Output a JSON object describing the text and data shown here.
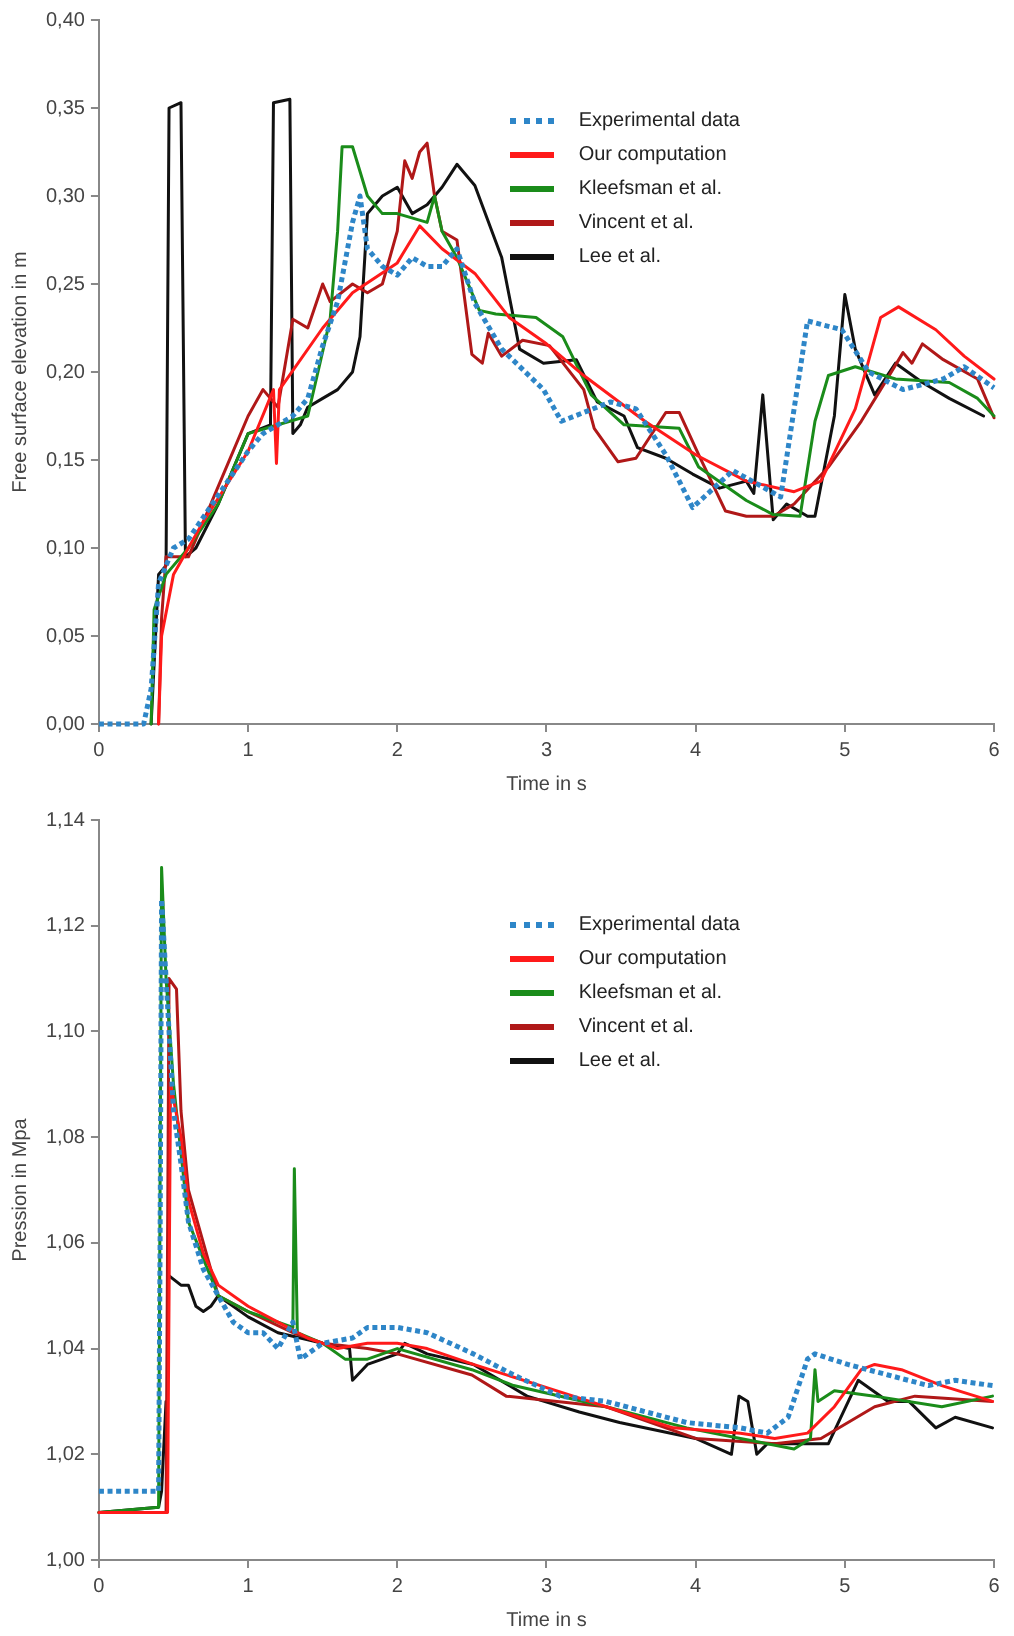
{
  "chart_data": [
    {
      "type": "line",
      "xlabel": "Time in s",
      "ylabel": "Free surface elevation in m",
      "legend": "top right",
      "marker": "none",
      "xlim": [
        0,
        6
      ],
      "xticks": [
        0,
        1,
        2,
        3,
        4,
        5,
        6
      ],
      "ylim": [
        0,
        0.4
      ],
      "yticks": [
        {
          "value": 0,
          "label": "0,00"
        },
        {
          "value": 0.05,
          "label": "0,05"
        },
        {
          "value": 0.1,
          "label": "0,10"
        },
        {
          "value": 0.15,
          "label": "0,15"
        },
        {
          "value": 0.2,
          "label": "0,20"
        },
        {
          "value": 0.25,
          "label": "0,25"
        },
        {
          "value": 0.3,
          "label": "0,30"
        },
        {
          "value": 0.35,
          "label": "0,35"
        },
        {
          "value": 0.4,
          "label": "0,40"
        }
      ],
      "series": [
        {
          "name": "Experimental data",
          "color": "#2e86c8",
          "line_style": "dotted",
          "x": [
            0,
            0.3,
            0.35,
            0.4,
            0.5,
            0.6,
            0.8,
            1.0,
            1.1,
            1.3,
            1.4,
            1.5,
            1.6,
            1.7,
            1.75,
            1.8,
            1.9,
            2.0,
            2.1,
            2.2,
            2.3,
            2.4,
            2.52,
            2.7,
            2.98,
            3.1,
            3.43,
            3.6,
            3.8,
            3.98,
            4.25,
            4.57,
            4.75,
            4.98,
            5.16,
            5.39,
            5.66,
            5.8,
            6.0
          ],
          "values": [
            0,
            0,
            0.02,
            0.08,
            0.1,
            0.105,
            0.13,
            0.155,
            0.165,
            0.175,
            0.185,
            0.215,
            0.24,
            0.285,
            0.3,
            0.27,
            0.26,
            0.255,
            0.265,
            0.26,
            0.26,
            0.27,
            0.239,
            0.213,
            0.19,
            0.172,
            0.183,
            0.179,
            0.153,
            0.123,
            0.144,
            0.129,
            0.229,
            0.224,
            0.2,
            0.19,
            0.196,
            0.203,
            0.191
          ]
        },
        {
          "name": "Our computation",
          "color": "#ff1a1a",
          "line_style": "solid",
          "x": [
            0.4,
            0.42,
            0.5,
            0.7,
            1.0,
            1.17,
            1.19,
            1.21,
            1.5,
            1.7,
            2.0,
            2.15,
            2.3,
            2.52,
            2.75,
            3.0,
            3.25,
            3.66,
            4.0,
            4.34,
            4.66,
            4.84,
            5.07,
            5.24,
            5.36,
            5.61,
            5.8,
            6.0
          ],
          "values": [
            0,
            0.05,
            0.085,
            0.115,
            0.155,
            0.19,
            0.148,
            0.19,
            0.225,
            0.245,
            0.262,
            0.283,
            0.27,
            0.256,
            0.231,
            0.216,
            0.198,
            0.172,
            0.153,
            0.138,
            0.132,
            0.138,
            0.179,
            0.231,
            0.237,
            0.224,
            0.209,
            0.196
          ]
        },
        {
          "name": "Kleefsman et al.",
          "color": "#1a8c1a",
          "line_style": "solid",
          "x": [
            0.35,
            0.37,
            0.45,
            0.6,
            0.8,
            1.0,
            1.2,
            1.4,
            1.55,
            1.6,
            1.63,
            1.7,
            1.8,
            1.9,
            2.0,
            2.2,
            2.25,
            2.3,
            2.4,
            2.55,
            2.66,
            2.93,
            3.11,
            3.3,
            3.52,
            3.89,
            4.02,
            4.34,
            4.52,
            4.7,
            4.8,
            4.89,
            5.07,
            5.34,
            5.7,
            5.89,
            6.0
          ],
          "values": [
            0,
            0.065,
            0.085,
            0.1,
            0.125,
            0.165,
            0.17,
            0.175,
            0.23,
            0.28,
            0.328,
            0.328,
            0.3,
            0.29,
            0.29,
            0.285,
            0.3,
            0.28,
            0.265,
            0.235,
            0.233,
            0.231,
            0.22,
            0.187,
            0.17,
            0.168,
            0.146,
            0.127,
            0.119,
            0.118,
            0.172,
            0.198,
            0.203,
            0.196,
            0.194,
            0.185,
            0.175
          ]
        },
        {
          "name": "Vincent et al.",
          "color": "#b01818",
          "line_style": "solid",
          "x": [
            0.4,
            0.42,
            0.45,
            0.6,
            0.8,
            1.0,
            1.1,
            1.2,
            1.3,
            1.4,
            1.5,
            1.55,
            1.7,
            1.8,
            1.9,
            2.0,
            2.05,
            2.1,
            2.15,
            2.2,
            2.25,
            2.3,
            2.4,
            2.5,
            2.57,
            2.61,
            2.7,
            2.84,
            3.02,
            3.25,
            3.32,
            3.48,
            3.6,
            3.8,
            3.89,
            4.02,
            4.2,
            4.34,
            4.52,
            4.66,
            4.89,
            5.11,
            5.24,
            5.39,
            5.45,
            5.52,
            5.66,
            5.89,
            6.0
          ],
          "values": [
            0,
            0.06,
            0.095,
            0.095,
            0.135,
            0.175,
            0.19,
            0.18,
            0.23,
            0.225,
            0.25,
            0.24,
            0.25,
            0.245,
            0.25,
            0.28,
            0.32,
            0.31,
            0.325,
            0.33,
            0.3,
            0.28,
            0.275,
            0.21,
            0.205,
            0.222,
            0.209,
            0.218,
            0.215,
            0.19,
            0.168,
            0.149,
            0.151,
            0.177,
            0.177,
            0.153,
            0.121,
            0.118,
            0.118,
            0.125,
            0.146,
            0.172,
            0.19,
            0.211,
            0.205,
            0.216,
            0.207,
            0.196,
            0.174
          ]
        },
        {
          "name": "Lee et al.",
          "color": "#111111",
          "line_style": "solid",
          "x": [
            0.35,
            0.4,
            0.45,
            0.47,
            0.55,
            0.58,
            0.65,
            0.8,
            1.0,
            1.15,
            1.17,
            1.28,
            1.3,
            1.35,
            1.4,
            1.5,
            1.6,
            1.7,
            1.75,
            1.8,
            1.9,
            2.0,
            2.1,
            2.2,
            2.3,
            2.4,
            2.52,
            2.7,
            2.82,
            2.98,
            3.2,
            3.34,
            3.52,
            3.61,
            3.8,
            3.98,
            4.16,
            4.34,
            4.39,
            4.45,
            4.52,
            4.61,
            4.75,
            4.8,
            4.93,
            5.0,
            5.07,
            5.2,
            5.34,
            5.52,
            5.7,
            5.93
          ],
          "values": [
            0,
            0.085,
            0.09,
            0.35,
            0.353,
            0.095,
            0.1,
            0.125,
            0.165,
            0.17,
            0.353,
            0.355,
            0.165,
            0.17,
            0.18,
            0.185,
            0.19,
            0.2,
            0.22,
            0.29,
            0.3,
            0.305,
            0.29,
            0.295,
            0.305,
            0.318,
            0.306,
            0.265,
            0.213,
            0.205,
            0.207,
            0.183,
            0.175,
            0.157,
            0.151,
            0.142,
            0.134,
            0.138,
            0.131,
            0.187,
            0.116,
            0.125,
            0.118,
            0.118,
            0.175,
            0.244,
            0.213,
            0.187,
            0.205,
            0.194,
            0.185,
            0.175
          ]
        }
      ]
    },
    {
      "type": "line",
      "xlabel": "Time in s",
      "ylabel": "Pression in Mpa",
      "legend": "top right",
      "marker": "none",
      "xlim": [
        0,
        6
      ],
      "xticks": [
        0,
        1,
        2,
        3,
        4,
        5,
        6
      ],
      "ylim": [
        1,
        1.14
      ],
      "yticks": [
        {
          "value": 1,
          "label": "1,00"
        },
        {
          "value": 1.02,
          "label": "1,02"
        },
        {
          "value": 1.04,
          "label": "1,04"
        },
        {
          "value": 1.06,
          "label": "1,06"
        },
        {
          "value": 1.08,
          "label": "1,08"
        },
        {
          "value": 1.1,
          "label": "1,10"
        },
        {
          "value": 1.12,
          "label": "1,12"
        },
        {
          "value": 1.14,
          "label": "1,14"
        }
      ],
      "series": [
        {
          "name": "Experimental data",
          "color": "#2e86c8",
          "line_style": "dotted",
          "x": [
            0,
            0.4,
            0.41,
            0.42,
            0.45,
            0.5,
            0.55,
            0.6,
            0.7,
            0.8,
            0.9,
            1.0,
            1.1,
            1.2,
            1.3,
            1.35,
            1.5,
            1.7,
            1.8,
            2.0,
            2.2,
            2.51,
            2.78,
            3.09,
            3.4,
            3.67,
            3.94,
            4.3,
            4.48,
            4.62,
            4.75,
            4.8,
            5.02,
            5.29,
            5.56,
            5.74,
            5.99
          ],
          "values": [
            1.013,
            1.013,
            1.06,
            1.125,
            1.11,
            1.085,
            1.075,
            1.064,
            1.055,
            1.05,
            1.045,
            1.043,
            1.043,
            1.04,
            1.045,
            1.038,
            1.041,
            1.042,
            1.044,
            1.044,
            1.043,
            1.039,
            1.035,
            1.031,
            1.03,
            1.028,
            1.026,
            1.025,
            1.024,
            1.027,
            1.038,
            1.039,
            1.037,
            1.035,
            1.033,
            1.034,
            1.033
          ]
        },
        {
          "name": "Our computation",
          "color": "#ff1a1a",
          "line_style": "solid",
          "x": [
            0,
            0.46,
            0.48,
            0.55,
            0.6,
            0.7,
            0.8,
            1.0,
            1.2,
            1.4,
            1.6,
            1.8,
            2.0,
            2.2,
            2.51,
            2.96,
            3.4,
            3.85,
            4.3,
            4.53,
            4.75,
            4.93,
            5.11,
            5.2,
            5.38,
            5.65,
            5.99
          ],
          "values": [
            1.009,
            1.009,
            1.09,
            1.08,
            1.068,
            1.058,
            1.052,
            1.048,
            1.045,
            1.042,
            1.04,
            1.041,
            1.041,
            1.04,
            1.037,
            1.033,
            1.029,
            1.025,
            1.024,
            1.023,
            1.024,
            1.029,
            1.036,
            1.037,
            1.036,
            1.033,
            1.03
          ]
        },
        {
          "name": "Kleefsman et al.",
          "color": "#1a8c1a",
          "line_style": "solid",
          "x": [
            0,
            0.4,
            0.42,
            0.45,
            0.5,
            0.6,
            0.8,
            1.0,
            1.3,
            1.31,
            1.33,
            1.5,
            1.65,
            1.8,
            2.0,
            2.5,
            2.78,
            3.4,
            3.94,
            4.3,
            4.66,
            4.77,
            4.8,
            4.82,
            4.93,
            5.2,
            5.65,
            5.99
          ],
          "values": [
            1.009,
            1.01,
            1.131,
            1.11,
            1.09,
            1.064,
            1.05,
            1.047,
            1.044,
            1.074,
            1.043,
            1.041,
            1.038,
            1.038,
            1.04,
            1.036,
            1.033,
            1.029,
            1.025,
            1.023,
            1.021,
            1.023,
            1.036,
            1.03,
            1.032,
            1.031,
            1.029,
            1.031
          ]
        },
        {
          "name": "Vincent et al.",
          "color": "#b01818",
          "line_style": "solid",
          "x": [
            0,
            0.45,
            0.47,
            0.52,
            0.55,
            0.6,
            0.8,
            1.0,
            1.3,
            1.5,
            1.8,
            2.0,
            2.5,
            2.73,
            3.4,
            4.0,
            4.53,
            4.84,
            5.2,
            5.47,
            5.99
          ],
          "values": [
            1.009,
            1.009,
            1.11,
            1.108,
            1.085,
            1.07,
            1.05,
            1.047,
            1.043,
            1.041,
            1.04,
            1.039,
            1.035,
            1.031,
            1.029,
            1.023,
            1.022,
            1.023,
            1.029,
            1.031,
            1.03
          ]
        },
        {
          "name": "Lee et al.",
          "color": "#111111",
          "line_style": "solid",
          "x": [
            0,
            0.4,
            0.42,
            0.45,
            0.46,
            0.55,
            0.6,
            0.65,
            0.7,
            0.75,
            0.8,
            1.0,
            1.2,
            1.5,
            1.68,
            1.7,
            1.8,
            2.0,
            2.05,
            2.2,
            2.51,
            2.87,
            3.22,
            3.49,
            4.0,
            4.24,
            4.29,
            4.35,
            4.41,
            4.48,
            4.75,
            4.89,
            5.09,
            5.29,
            5.43,
            5.61,
            5.74,
            5.99
          ],
          "values": [
            1.009,
            1.01,
            1.013,
            1.03,
            1.054,
            1.052,
            1.052,
            1.048,
            1.047,
            1.048,
            1.05,
            1.046,
            1.043,
            1.041,
            1.04,
            1.034,
            1.037,
            1.039,
            1.041,
            1.039,
            1.037,
            1.031,
            1.028,
            1.026,
            1.023,
            1.02,
            1.031,
            1.03,
            1.02,
            1.022,
            1.022,
            1.022,
            1.034,
            1.03,
            1.03,
            1.025,
            1.027,
            1.025
          ]
        }
      ]
    }
  ]
}
